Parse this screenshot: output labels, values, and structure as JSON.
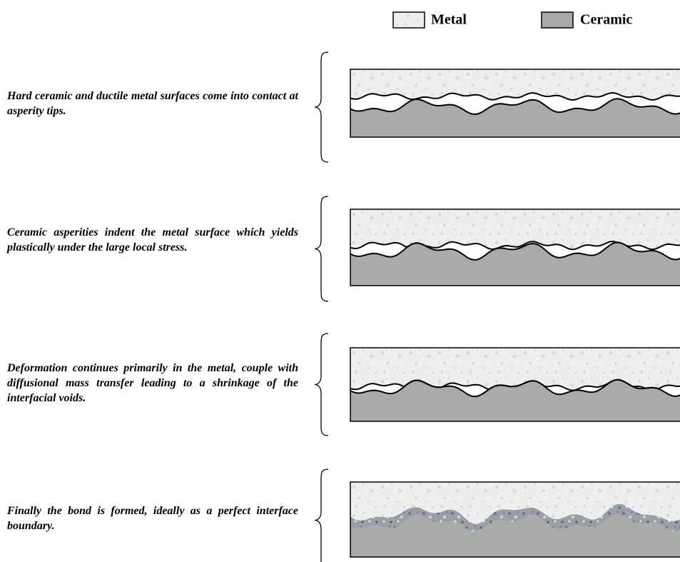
{
  "legend": {
    "items": [
      "Metal",
      "Ceramic"
    ]
  },
  "stages": [
    {
      "text": "Hard ceramic and ductile metal surfaces come into contact at asperity tips."
    },
    {
      "text": "Ceramic asperities indent the metal surface which yields plastically under the large local stress."
    },
    {
      "text": "Deformation continues primarily in the metal, couple with diffusional mass transfer leading to a shrinkage of the interfacial voids."
    },
    {
      "text": "Finally the bond is formed, ideally as a perfect interface boundary."
    }
  ]
}
